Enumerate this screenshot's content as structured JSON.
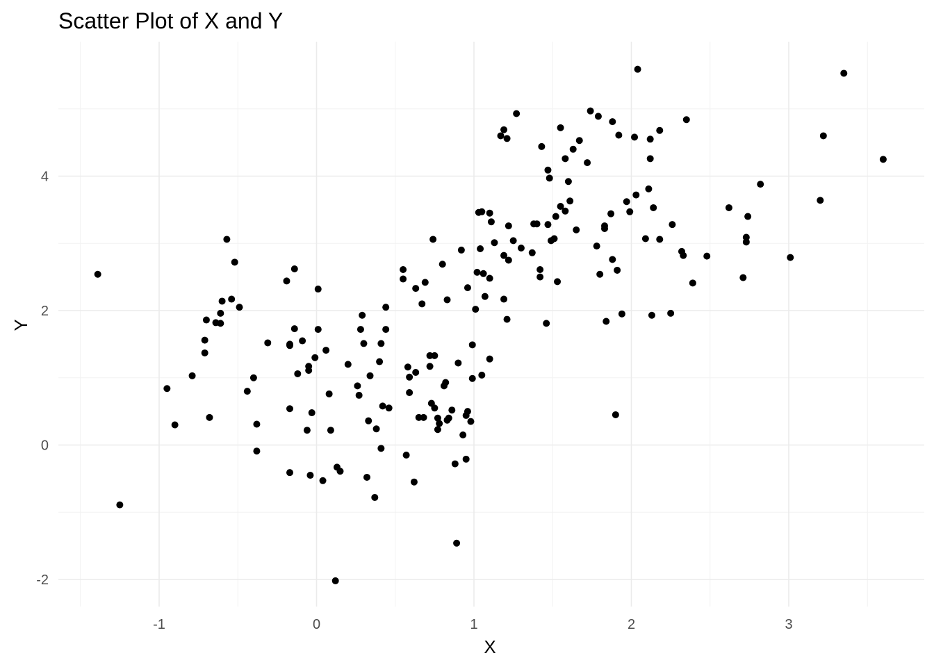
{
  "chart_data": {
    "type": "scatter",
    "title": "Scatter Plot of X and Y",
    "xlabel": "X",
    "ylabel": "Y",
    "xlim": [
      -1.6,
      3.85
    ],
    "ylim": [
      -2.3,
      6.0
    ],
    "x_ticks": [
      -1,
      0,
      1,
      2,
      3
    ],
    "x_tick_labels": [
      "-1",
      "0",
      "1",
      "2",
      "3"
    ],
    "y_ticks": [
      -2,
      0,
      2,
      4
    ],
    "y_tick_labels": [
      "-2",
      "0",
      "2",
      "4"
    ],
    "x_minor_ticks": [
      -1.5,
      -0.5,
      0.5,
      1.5,
      2.5,
      3.5
    ],
    "y_minor_ticks": [
      -1,
      1,
      3,
      5
    ],
    "grid": true,
    "legend": "none",
    "point_color": "#000000",
    "series": [
      {
        "points": [
          [
            -1.39,
            2.54
          ],
          [
            -1.25,
            -0.89
          ],
          [
            -0.95,
            0.84
          ],
          [
            -0.9,
            0.3
          ],
          [
            -0.79,
            1.03
          ],
          [
            -0.71,
            1.56
          ],
          [
            -0.7,
            1.86
          ],
          [
            -0.68,
            0.41
          ],
          [
            -0.71,
            1.37
          ],
          [
            -0.64,
            1.82
          ],
          [
            -0.61,
            1.81
          ],
          [
            -0.61,
            1.96
          ],
          [
            -0.6,
            2.14
          ],
          [
            -0.57,
            3.06
          ],
          [
            -0.54,
            2.17
          ],
          [
            -0.52,
            2.72
          ],
          [
            -0.49,
            2.05
          ],
          [
            -0.44,
            0.8
          ],
          [
            -0.4,
            1.0
          ],
          [
            -0.38,
            0.31
          ],
          [
            -0.38,
            -0.09
          ],
          [
            -0.31,
            1.52
          ],
          [
            -0.19,
            2.44
          ],
          [
            -0.17,
            1.5
          ],
          [
            -0.17,
            1.48
          ],
          [
            -0.17,
            0.54
          ],
          [
            -0.17,
            -0.41
          ],
          [
            -0.14,
            2.62
          ],
          [
            -0.14,
            1.73
          ],
          [
            -0.12,
            1.06
          ],
          [
            -0.09,
            1.55
          ],
          [
            -0.06,
            0.22
          ],
          [
            -0.05,
            1.17
          ],
          [
            -0.05,
            1.11
          ],
          [
            -0.04,
            -0.45
          ],
          [
            -0.03,
            0.48
          ],
          [
            -0.01,
            1.3
          ],
          [
            0.01,
            2.32
          ],
          [
            0.01,
            1.72
          ],
          [
            0.04,
            -0.53
          ],
          [
            0.06,
            1.41
          ],
          [
            0.08,
            0.76
          ],
          [
            0.09,
            0.22
          ],
          [
            0.13,
            -0.33
          ],
          [
            0.12,
            -2.02
          ],
          [
            0.15,
            -0.39
          ],
          [
            0.2,
            1.2
          ],
          [
            0.26,
            0.88
          ],
          [
            0.27,
            0.74
          ],
          [
            0.28,
            1.72
          ],
          [
            0.29,
            1.93
          ],
          [
            0.3,
            1.51
          ],
          [
            0.32,
            -0.48
          ],
          [
            0.33,
            0.36
          ],
          [
            0.34,
            1.03
          ],
          [
            0.37,
            -0.78
          ],
          [
            0.38,
            0.24
          ],
          [
            0.4,
            1.24
          ],
          [
            0.41,
            1.51
          ],
          [
            0.42,
            0.58
          ],
          [
            0.41,
            -0.05
          ],
          [
            0.44,
            1.72
          ],
          [
            0.44,
            2.05
          ],
          [
            0.46,
            0.55
          ],
          [
            0.55,
            2.61
          ],
          [
            0.55,
            2.47
          ],
          [
            0.57,
            -0.15
          ],
          [
            0.58,
            1.16
          ],
          [
            0.59,
            1.01
          ],
          [
            0.59,
            0.78
          ],
          [
            0.62,
            -0.55
          ],
          [
            0.63,
            1.08
          ],
          [
            0.63,
            2.33
          ],
          [
            0.65,
            0.41
          ],
          [
            0.67,
            2.1
          ],
          [
            0.68,
            0.41
          ],
          [
            0.69,
            2.42
          ],
          [
            0.72,
            1.33
          ],
          [
            0.72,
            1.17
          ],
          [
            0.73,
            0.62
          ],
          [
            0.74,
            3.06
          ],
          [
            0.75,
            0.55
          ],
          [
            0.75,
            1.33
          ],
          [
            0.77,
            0.4
          ],
          [
            0.77,
            0.23
          ],
          [
            0.78,
            0.32
          ],
          [
            0.8,
            2.69
          ],
          [
            0.81,
            0.88
          ],
          [
            0.82,
            0.93
          ],
          [
            0.83,
            0.37
          ],
          [
            0.83,
            2.16
          ],
          [
            0.84,
            0.4
          ],
          [
            0.86,
            0.52
          ],
          [
            0.88,
            -0.28
          ],
          [
            0.89,
            -1.46
          ],
          [
            0.9,
            1.22
          ],
          [
            0.92,
            2.9
          ],
          [
            0.93,
            0.15
          ],
          [
            0.95,
            0.44
          ],
          [
            0.95,
            -0.21
          ],
          [
            0.96,
            0.5
          ],
          [
            0.96,
            2.34
          ],
          [
            0.98,
            0.35
          ],
          [
            0.99,
            0.99
          ],
          [
            0.99,
            1.49
          ],
          [
            1.01,
            2.02
          ],
          [
            1.02,
            2.57
          ],
          [
            1.03,
            3.46
          ],
          [
            1.04,
            2.92
          ],
          [
            1.05,
            1.04
          ],
          [
            1.05,
            3.47
          ],
          [
            1.06,
            2.55
          ],
          [
            1.07,
            2.21
          ],
          [
            1.1,
            3.45
          ],
          [
            1.1,
            2.48
          ],
          [
            1.1,
            1.28
          ],
          [
            1.11,
            3.32
          ],
          [
            1.13,
            3.01
          ],
          [
            1.17,
            4.6
          ],
          [
            1.19,
            2.17
          ],
          [
            1.19,
            4.69
          ],
          [
            1.19,
            2.82
          ],
          [
            1.21,
            4.56
          ],
          [
            1.21,
            1.87
          ],
          [
            1.22,
            3.26
          ],
          [
            1.22,
            2.75
          ],
          [
            1.25,
            3.04
          ],
          [
            1.27,
            4.93
          ],
          [
            1.3,
            2.93
          ],
          [
            1.37,
            2.86
          ],
          [
            1.38,
            3.29
          ],
          [
            1.4,
            3.29
          ],
          [
            1.42,
            2.61
          ],
          [
            1.42,
            2.5
          ],
          [
            1.43,
            4.44
          ],
          [
            1.46,
            1.81
          ],
          [
            1.47,
            4.09
          ],
          [
            1.48,
            3.97
          ],
          [
            1.47,
            3.28
          ],
          [
            1.49,
            3.04
          ],
          [
            1.51,
            3.07
          ],
          [
            1.52,
            3.4
          ],
          [
            1.53,
            2.43
          ],
          [
            1.55,
            3.55
          ],
          [
            1.55,
            4.72
          ],
          [
            1.58,
            3.48
          ],
          [
            1.58,
            4.26
          ],
          [
            1.6,
            3.92
          ],
          [
            1.61,
            3.63
          ],
          [
            1.63,
            4.4
          ],
          [
            1.65,
            3.2
          ],
          [
            1.67,
            4.53
          ],
          [
            1.72,
            4.2
          ],
          [
            1.74,
            4.97
          ],
          [
            1.78,
            2.96
          ],
          [
            1.79,
            4.89
          ],
          [
            1.8,
            2.54
          ],
          [
            1.83,
            3.26
          ],
          [
            1.83,
            3.22
          ],
          [
            1.84,
            1.84
          ],
          [
            1.87,
            3.44
          ],
          [
            1.88,
            4.81
          ],
          [
            1.88,
            2.76
          ],
          [
            1.9,
            0.45
          ],
          [
            1.91,
            2.6
          ],
          [
            1.92,
            4.61
          ],
          [
            1.94,
            1.95
          ],
          [
            1.97,
            3.62
          ],
          [
            1.99,
            3.47
          ],
          [
            2.02,
            4.58
          ],
          [
            2.03,
            3.72
          ],
          [
            2.04,
            5.59
          ],
          [
            2.09,
            3.07
          ],
          [
            2.11,
            3.81
          ],
          [
            2.12,
            4.26
          ],
          [
            2.12,
            4.55
          ],
          [
            2.13,
            1.93
          ],
          [
            2.14,
            3.53
          ],
          [
            2.18,
            3.06
          ],
          [
            2.18,
            4.68
          ],
          [
            2.25,
            1.96
          ],
          [
            2.26,
            3.28
          ],
          [
            2.32,
            2.88
          ],
          [
            2.33,
            2.82
          ],
          [
            2.35,
            4.84
          ],
          [
            2.39,
            2.41
          ],
          [
            2.48,
            2.81
          ],
          [
            2.62,
            3.53
          ],
          [
            2.71,
            2.49
          ],
          [
            2.73,
            3.09
          ],
          [
            2.73,
            3.02
          ],
          [
            2.74,
            3.4
          ],
          [
            2.82,
            3.88
          ],
          [
            3.01,
            2.79
          ],
          [
            3.2,
            3.64
          ],
          [
            3.22,
            4.6
          ],
          [
            3.35,
            5.53
          ],
          [
            3.6,
            4.25
          ]
        ]
      }
    ]
  }
}
